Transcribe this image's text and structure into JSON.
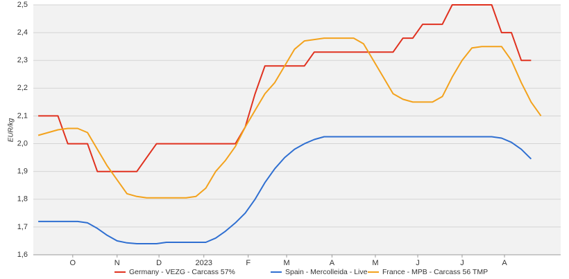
{
  "chart_data": {
    "type": "line",
    "y_label": "EUR/kg",
    "x": [
      0,
      1,
      2,
      3,
      4,
      5,
      6,
      7,
      8,
      9,
      10,
      11,
      12,
      13,
      14,
      15,
      16,
      17,
      18,
      19,
      20,
      21,
      22,
      23,
      24,
      25,
      26,
      27,
      28,
      29,
      30,
      31,
      32,
      33,
      34,
      35,
      36,
      37,
      38,
      39,
      40,
      41,
      42,
      43,
      44,
      45,
      46,
      47,
      48,
      49,
      50,
      51
    ],
    "xlim": [
      -0.5,
      53
    ],
    "xticks": [
      {
        "value": 3.5,
        "label": "O"
      },
      {
        "value": 8,
        "label": "N"
      },
      {
        "value": 12.25,
        "label": "D"
      },
      {
        "value": 16.8,
        "label": "2023"
      },
      {
        "value": 21.3,
        "label": "F"
      },
      {
        "value": 25.2,
        "label": "M"
      },
      {
        "value": 29.8,
        "label": "A"
      },
      {
        "value": 34.2,
        "label": "M"
      },
      {
        "value": 38.5,
        "label": "J"
      },
      {
        "value": 43,
        "label": "J"
      },
      {
        "value": 47.3,
        "label": "A"
      }
    ],
    "ylim": [
      1.6,
      2.5
    ],
    "yticks": [
      {
        "value": 1.6,
        "label": "1,6"
      },
      {
        "value": 1.7,
        "label": "1,7"
      },
      {
        "value": 1.8,
        "label": "1,8"
      },
      {
        "value": 1.9,
        "label": "1,9"
      },
      {
        "value": 2.0,
        "label": "2,0"
      },
      {
        "value": 2.1,
        "label": "2,1"
      },
      {
        "value": 2.2,
        "label": "2,2"
      },
      {
        "value": 2.3,
        "label": "2,3"
      },
      {
        "value": 2.4,
        "label": "2,4"
      },
      {
        "value": 2.5,
        "label": "2,5"
      }
    ],
    "grid": true,
    "legend": "bottom",
    "series": [
      {
        "name": "Germany - VEZG - Carcass 57%",
        "color": "#e0311f",
        "values": [
          2.1,
          2.1,
          2.1,
          2.0,
          2.0,
          2.0,
          1.9,
          1.9,
          1.9,
          1.9,
          1.9,
          1.95,
          2.0,
          2.0,
          2.0,
          2.0,
          2.0,
          2.0,
          2.0,
          2.0,
          2.0,
          2.06,
          2.18,
          2.28,
          2.28,
          2.28,
          2.28,
          2.28,
          2.33,
          2.33,
          2.33,
          2.33,
          2.33,
          2.33,
          2.33,
          2.33,
          2.33,
          2.38,
          2.38,
          2.43,
          2.43,
          2.43,
          2.5,
          2.5,
          2.5,
          2.5,
          2.5,
          2.4,
          2.4,
          2.3,
          2.3,
          null
        ]
      },
      {
        "name": "Spain - Mercolleida - Live",
        "color": "#2f6fd1",
        "values": [
          1.72,
          1.72,
          1.72,
          1.72,
          1.72,
          1.715,
          1.695,
          1.67,
          1.65,
          1.643,
          1.64,
          1.64,
          1.64,
          1.645,
          1.645,
          1.645,
          1.645,
          1.645,
          1.66,
          1.685,
          1.715,
          1.75,
          1.8,
          1.86,
          1.91,
          1.95,
          1.98,
          2.0,
          2.015,
          2.025,
          2.025,
          2.025,
          2.025,
          2.025,
          2.025,
          2.025,
          2.025,
          2.025,
          2.025,
          2.025,
          2.025,
          2.025,
          2.025,
          2.025,
          2.025,
          2.025,
          2.025,
          2.02,
          2.005,
          1.98,
          1.945,
          null
        ]
      },
      {
        "name": "France - MPB - Carcass 56 TMP",
        "color": "#f3a21c",
        "values": [
          2.03,
          2.04,
          2.05,
          2.055,
          2.055,
          2.04,
          1.98,
          1.92,
          1.87,
          1.82,
          1.81,
          1.805,
          1.805,
          1.805,
          1.805,
          1.805,
          1.81,
          1.84,
          1.9,
          1.94,
          1.99,
          2.06,
          2.12,
          2.18,
          2.22,
          2.28,
          2.34,
          2.37,
          2.375,
          2.38,
          2.38,
          2.38,
          2.38,
          2.36,
          2.3,
          2.24,
          2.18,
          2.16,
          2.15,
          2.15,
          2.15,
          2.17,
          2.24,
          2.3,
          2.345,
          2.35,
          2.35,
          2.35,
          2.3,
          2.22,
          2.15,
          2.1
        ]
      }
    ]
  }
}
